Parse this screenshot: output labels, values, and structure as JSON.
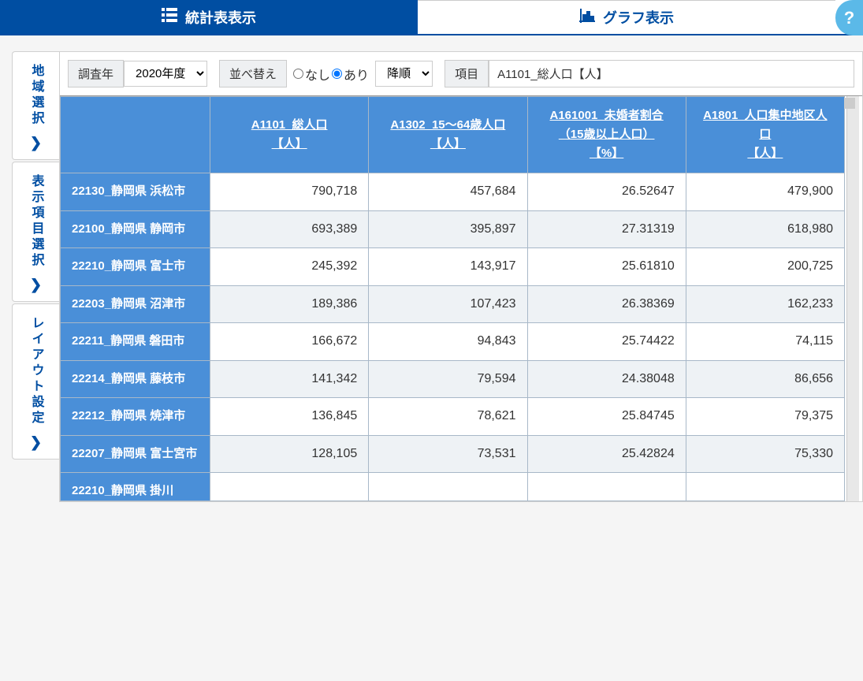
{
  "tabs": {
    "stats": "統計表表示",
    "graph": "グラフ表示"
  },
  "help": "?",
  "sidebar": {
    "region": "地域選択",
    "items": "表示項目選択",
    "layout": "レイアウト設定"
  },
  "controls": {
    "year_label": "調査年",
    "year_value": "2020年度",
    "sort_label": "並べ替え",
    "sort_none": "なし",
    "sort_yes": "あり",
    "order_value": "降順",
    "item_label": "項目",
    "item_value": "A1101_総人口【人】"
  },
  "table": {
    "columns": [
      {
        "line1": "A1101_総人口",
        "line2": "【人】"
      },
      {
        "line1": "A1302_15～64歳人口",
        "line2": "【人】"
      },
      {
        "line1": "A161001_未婚者割合（15歳以上人口）",
        "line2": "【%】"
      },
      {
        "line1": "A1801_人口集中地区人口",
        "line2": "【人】"
      }
    ],
    "rows": [
      {
        "region": "22130_静岡県 浜松市",
        "c0": "790,718",
        "c1": "457,684",
        "c2": "26.52647",
        "c3": "479,900"
      },
      {
        "region": "22100_静岡県 静岡市",
        "c0": "693,389",
        "c1": "395,897",
        "c2": "27.31319",
        "c3": "618,980"
      },
      {
        "region": "22210_静岡県 富士市",
        "c0": "245,392",
        "c1": "143,917",
        "c2": "25.61810",
        "c3": "200,725"
      },
      {
        "region": "22203_静岡県 沼津市",
        "c0": "189,386",
        "c1": "107,423",
        "c2": "26.38369",
        "c3": "162,233"
      },
      {
        "region": "22211_静岡県 磐田市",
        "c0": "166,672",
        "c1": "94,843",
        "c2": "25.74422",
        "c3": "74,115"
      },
      {
        "region": "22214_静岡県 藤枝市",
        "c0": "141,342",
        "c1": "79,594",
        "c2": "24.38048",
        "c3": "86,656"
      },
      {
        "region": "22212_静岡県 焼津市",
        "c0": "136,845",
        "c1": "78,621",
        "c2": "25.84745",
        "c3": "79,375"
      },
      {
        "region": "22207_静岡県 富士宮市",
        "c0": "128,105",
        "c1": "73,531",
        "c2": "25.42824",
        "c3": "75,330"
      }
    ],
    "partial_row": "22210_静岡県 掛川"
  },
  "colors": {
    "primary": "#004ea2",
    "header_blue": "#4a8fd8",
    "help_blue": "#5bb9e8",
    "row_alt": "#eef2f5"
  }
}
